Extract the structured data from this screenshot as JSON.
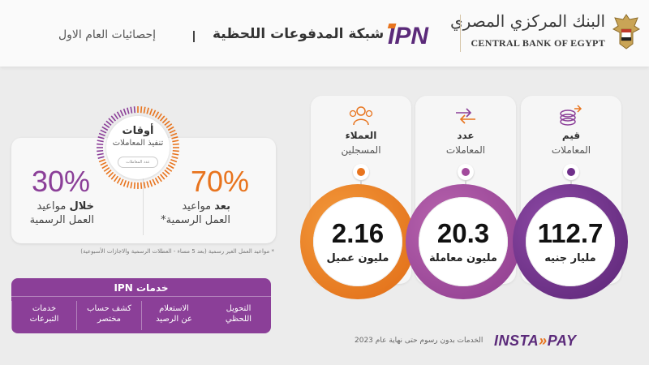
{
  "header": {
    "bank_name_ar": "البنك المركزي المصري",
    "bank_name_en": "CENTRAL BANK OF EGYPT",
    "ipn_logo_text": "IPN",
    "title": "شبكة المدفوعات اللحظية",
    "subtitle": "إحصائيات العام الاول"
  },
  "stats": [
    {
      "icon": "coins-icon",
      "label_line1": "قيم",
      "label_line2": "المعاملات",
      "value": "112.7",
      "unit": "مليار جنيه",
      "color": "#6f2f8a"
    },
    {
      "icon": "transfer-arrows-icon",
      "label_line1": "عدد",
      "label_line2": "المعاملات",
      "value": "20.3",
      "unit": "مليون معاملة",
      "color": "#a24a9c"
    },
    {
      "icon": "people-icon",
      "label_line1": "العملاء",
      "label_line2": "المسجلين",
      "value": "2.16",
      "unit": "مليون عميل",
      "color": "#e8741e"
    }
  ],
  "timing": {
    "title": "أوقات",
    "subtitle": "تنفيذ المعاملات",
    "pill": "عدد المعاملات",
    "after_pct": "70%",
    "after_bold": "بعد",
    "after_rest": "مواعيد",
    "after_line2": "العمل الرسمية*",
    "during_pct": "30%",
    "during_bold": "خلال",
    "during_rest": "مواعيد",
    "during_line2": "العمل الرسمية",
    "after_fraction": 0.7,
    "footnote": "* مواعيد العمل الغير رسمية (بعد 5 مساء - العطلات الرسمية والاجازات الأسبوعية)"
  },
  "services": {
    "title": "خدمات IPN",
    "items": [
      {
        "line1": "التحويل",
        "line2": "اللحظي"
      },
      {
        "line1": "الاستعلام",
        "line2": "عن الرصيد"
      },
      {
        "line1": "كشف حساب",
        "line2": "مختصر"
      },
      {
        "line1": "خدمات",
        "line2": "التبرعات"
      }
    ]
  },
  "instapay": {
    "brand_a": "INSTA",
    "brand_b": "PAY",
    "note": "الخدمات بدون رسوم حتى نهاية عام 2023"
  },
  "colors": {
    "purple": "#8b3f98",
    "dark_purple": "#6f2f8a",
    "orange": "#e8741e"
  }
}
